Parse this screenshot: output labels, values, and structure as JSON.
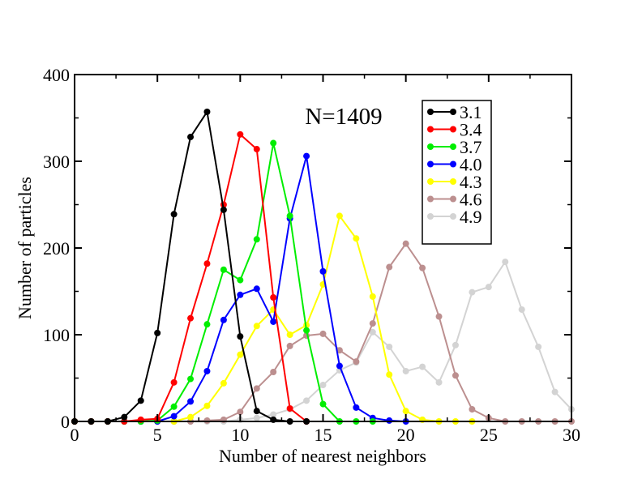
{
  "chart_data": {
    "type": "line",
    "title": "",
    "annotation": "N=1409",
    "xlabel": "Number of nearest neighbors",
    "ylabel": "Number of particles",
    "xlim": [
      0,
      30
    ],
    "ylim": [
      0,
      400
    ],
    "xticks": [
      0,
      5,
      10,
      15,
      20,
      25,
      30
    ],
    "yticks": [
      0,
      100,
      200,
      300,
      400
    ],
    "xtick_labels": [
      "0",
      "5",
      "10",
      "15",
      "20",
      "25",
      "30"
    ],
    "ytick_labels": [
      "0",
      "100",
      "200",
      "300",
      "400"
    ],
    "grid": false,
    "legend_position": "top-right",
    "series": [
      {
        "name": "3.1",
        "color": "#000000",
        "x": [
          0,
          1,
          2,
          3,
          4,
          5,
          6,
          7,
          8,
          9,
          10,
          11,
          12,
          13,
          14
        ],
        "y": [
          0,
          0,
          0,
          5,
          24,
          102,
          239,
          328,
          357,
          244,
          98,
          12,
          2,
          0,
          0
        ]
      },
      {
        "name": "3.4",
        "color": "#ff0000",
        "x": [
          0,
          1,
          2,
          3,
          4,
          5,
          6,
          7,
          8,
          9,
          10,
          11,
          12,
          13,
          14
        ],
        "y": [
          0,
          0,
          0,
          0,
          2,
          3,
          45,
          119,
          182,
          250,
          331,
          314,
          143,
          15,
          0
        ]
      },
      {
        "name": "3.7",
        "color": "#00ee00",
        "x": [
          0,
          1,
          2,
          3,
          4,
          5,
          6,
          7,
          8,
          9,
          10,
          11,
          12,
          13,
          14,
          15,
          16,
          17,
          18
        ],
        "y": [
          0,
          0,
          0,
          0,
          0,
          1,
          17,
          49,
          112,
          175,
          163,
          210,
          321,
          237,
          105,
          20,
          0,
          0,
          0
        ]
      },
      {
        "name": "4.0",
        "color": "#0000ff",
        "x": [
          0,
          1,
          2,
          3,
          4,
          5,
          6,
          7,
          8,
          9,
          10,
          11,
          12,
          13,
          14,
          15,
          16,
          17,
          18,
          19,
          20
        ],
        "y": [
          0,
          0,
          0,
          0,
          0,
          0,
          6,
          23,
          58,
          117,
          146,
          153,
          115,
          234,
          306,
          173,
          64,
          16,
          4,
          1,
          0
        ]
      },
      {
        "name": "4.3",
        "color": "#ffff00",
        "x": [
          0,
          1,
          2,
          3,
          4,
          5,
          6,
          7,
          8,
          9,
          10,
          11,
          12,
          13,
          14,
          15,
          16,
          17,
          18,
          19,
          20,
          21,
          22,
          23,
          24
        ],
        "y": [
          0,
          0,
          0,
          0,
          0,
          0,
          0,
          5,
          18,
          44,
          77,
          110,
          129,
          100,
          111,
          158,
          237,
          211,
          144,
          54,
          12,
          2,
          0,
          0,
          0
        ]
      },
      {
        "name": "4.6",
        "color": "#bc8f8f",
        "x": [
          0,
          1,
          2,
          3,
          4,
          5,
          6,
          7,
          8,
          9,
          10,
          11,
          12,
          13,
          14,
          15,
          16,
          17,
          18,
          19,
          20,
          21,
          22,
          23,
          24,
          25,
          26,
          27,
          28,
          29,
          30
        ],
        "y": [
          0,
          0,
          0,
          0,
          0,
          0,
          0,
          0,
          1,
          2,
          11,
          38,
          57,
          87,
          99,
          101,
          82,
          69,
          113,
          178,
          205,
          177,
          121,
          53,
          14,
          4,
          0,
          0,
          0,
          0,
          0
        ]
      },
      {
        "name": "4.9",
        "color": "#d3d3d3",
        "x": [
          0,
          1,
          2,
          3,
          4,
          5,
          6,
          7,
          8,
          9,
          10,
          11,
          12,
          13,
          14,
          15,
          16,
          17,
          18,
          19,
          20,
          21,
          22,
          23,
          24,
          25,
          26,
          27,
          28,
          29,
          30
        ],
        "y": [
          0,
          0,
          0,
          0,
          0,
          0,
          0,
          0,
          0,
          0,
          2,
          4,
          8,
          14,
          24,
          42,
          59,
          68,
          103,
          86,
          58,
          63,
          45,
          88,
          149,
          155,
          184,
          129,
          86,
          34,
          14
        ]
      }
    ]
  }
}
